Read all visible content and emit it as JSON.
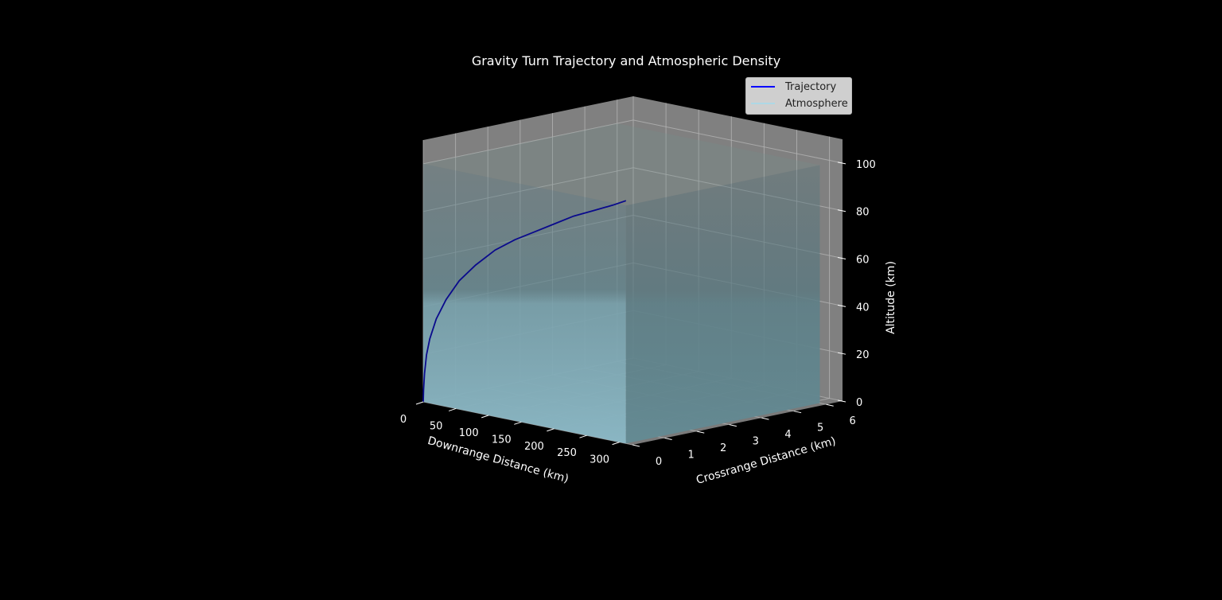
{
  "chart_data": {
    "type": "line",
    "projection": "3d",
    "title": "Gravity Turn Trajectory and Atmospheric Density",
    "xlabel": "Downrange Distance (km)",
    "ylabel": "Crossrange Distance (km)",
    "zlabel": "Altitude (km)",
    "xlim": [
      0,
      320
    ],
    "ylim": [
      0,
      6.5
    ],
    "zlim": [
      0,
      110
    ],
    "xticks": [
      "0",
      "50",
      "100",
      "150",
      "200",
      "250",
      "300"
    ],
    "yticks": [
      "0",
      "1",
      "2",
      "3",
      "4",
      "5",
      "6"
    ],
    "zticks": [
      "0",
      "20",
      "40",
      "60",
      "80",
      "100"
    ],
    "grid": true,
    "legend_position": "upper-right",
    "series": [
      {
        "name": "Trajectory",
        "type": "line",
        "color": "#0000ff",
        "x": [
          0,
          0.5,
          2,
          5,
          10,
          20,
          35,
          55,
          80,
          110,
          140,
          170,
          200,
          230,
          260,
          290,
          310
        ],
        "y": [
          0,
          0,
          0,
          0,
          0,
          0,
          0,
          0,
          0,
          0,
          0,
          0,
          0,
          0,
          0,
          0,
          0
        ],
        "z": [
          0,
          5,
          12,
          20,
          27,
          36,
          45,
          54,
          62,
          70,
          76,
          81,
          86,
          91,
          95,
          99,
          102
        ]
      },
      {
        "name": "Atmosphere",
        "type": "volume",
        "color": "#add8e6",
        "x_range": [
          0,
          310
        ],
        "y_range": [
          0,
          6
        ],
        "z_range": [
          0,
          100
        ]
      }
    ]
  },
  "colors": {
    "background": "#000000",
    "pane": "#808080",
    "grid": "#b3b3b3",
    "trajectory": "#0000ff",
    "atmosphere": "#add8e6"
  }
}
